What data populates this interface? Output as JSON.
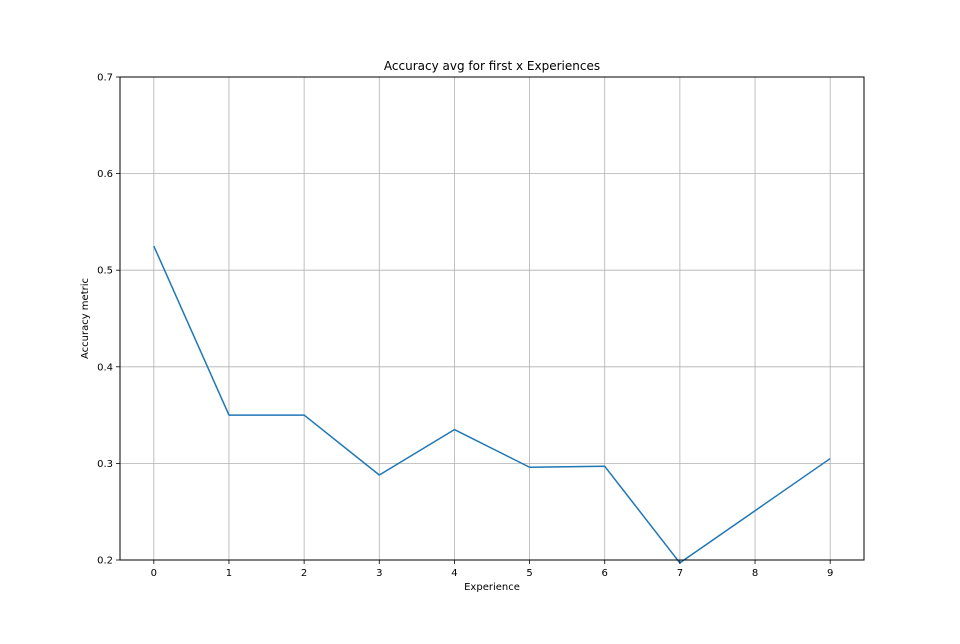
{
  "chart_data": {
    "type": "line",
    "title": "Accuracy avg for first x Experiences",
    "xlabel": "Experience",
    "ylabel": "Accuracy metric",
    "x": [
      0,
      1,
      2,
      3,
      4,
      5,
      6,
      7,
      8,
      9
    ],
    "xlim": [
      -0.45,
      9.45
    ],
    "ylim": [
      0.2,
      0.7
    ],
    "x_ticks": [
      0,
      1,
      2,
      3,
      4,
      5,
      6,
      7,
      8,
      9
    ],
    "y_ticks": [
      0.2,
      0.3,
      0.4,
      0.5,
      0.6,
      0.7
    ],
    "y_tick_labels": [
      "0.2",
      "0.3",
      "0.4",
      "0.5",
      "0.6",
      "0.7"
    ],
    "grid": true,
    "series": [
      {
        "values": [
          0.525,
          0.35,
          0.35,
          0.288,
          0.335,
          0.296,
          0.297,
          0.197,
          0.251,
          0.305
        ],
        "color": "#1f77b4"
      }
    ]
  }
}
